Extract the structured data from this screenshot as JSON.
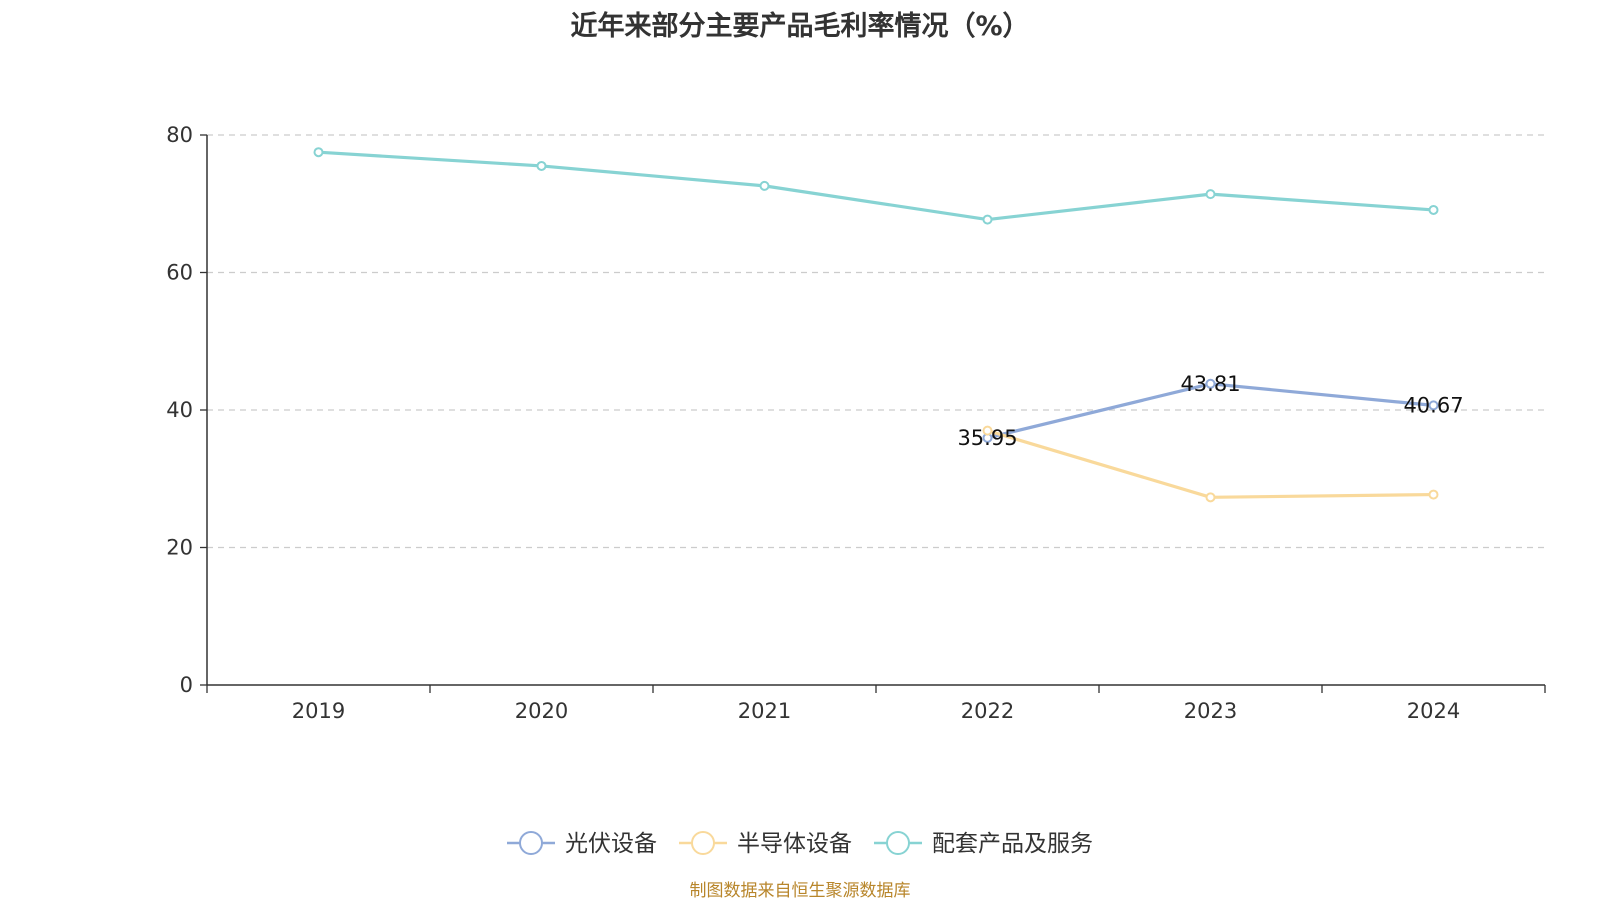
{
  "chart_data": {
    "type": "line",
    "title": "近年来部分主要产品毛利率情况（%）",
    "categories": [
      "2019",
      "2020",
      "2021",
      "2022",
      "2023",
      "2024"
    ],
    "ylim": [
      0,
      80
    ],
    "yticks": [
      0,
      20,
      40,
      60,
      80
    ],
    "grid": true,
    "legend_position": "bottom",
    "series": [
      {
        "name": "光伏设备",
        "color": "#8fa9d8",
        "values": [
          null,
          null,
          null,
          35.95,
          43.81,
          40.67
        ],
        "labels": [
          "",
          "",
          "",
          "35.95",
          "43.81",
          "40.67"
        ]
      },
      {
        "name": "半导体设备",
        "color": "#f9d99b",
        "values": [
          null,
          null,
          null,
          37.0,
          27.3,
          27.7
        ],
        "labels": [
          "",
          "",
          "",
          "",
          "",
          ""
        ]
      },
      {
        "name": "配套产品及服务",
        "color": "#87d3d3",
        "values": [
          77.5,
          75.5,
          72.6,
          67.7,
          71.4,
          69.1
        ],
        "labels": [
          "",
          "",
          "",
          "",
          "",
          ""
        ]
      }
    ]
  },
  "source_note": "制图数据来自恒生聚源数据库"
}
